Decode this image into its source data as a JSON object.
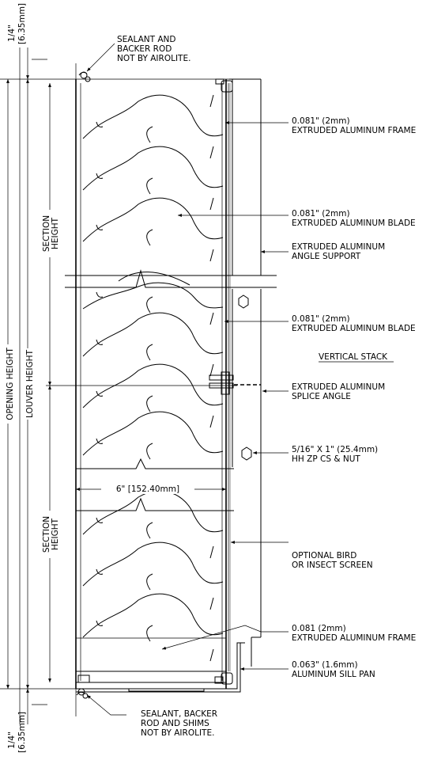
{
  "dimensions": {
    "top_gap": "1/4\"",
    "top_gap_mm": "[6.35mm]",
    "bottom_gap": "1/4\"",
    "bottom_gap_mm": "[6.35mm]",
    "opening_height": "OPENING HEIGHT",
    "louver_height": "LOUVER HEIGHT",
    "section_height_top": [
      "SECTION",
      "HEIGHT"
    ],
    "section_height_bottom": [
      "SECTION",
      "HEIGHT"
    ],
    "depth": "6\" [152.40mm]"
  },
  "callouts": {
    "sealant_top": [
      "SEALANT AND",
      "BACKER ROD",
      "NOT BY AIROLITE."
    ],
    "frame_top": [
      "0.081\" (2mm)",
      "EXTRUDED ALUMINUM FRAME"
    ],
    "blade_top": [
      "0.081\" (2mm)",
      "EXTRUDED ALUMINUM BLADE"
    ],
    "angle_support": [
      "EXTRUDED ALUMINUM",
      "ANGLE SUPPORT"
    ],
    "blade_middle": [
      "0.081\" (2mm)",
      "EXTRUDED ALUMINUM BLADE"
    ],
    "vertical_stack": "VERTICAL STACK",
    "splice_angle": [
      "EXTRUDED ALUMINUM",
      "SPLICE ANGLE"
    ],
    "bolt": [
      "5/16\" X 1\" (25.4mm)",
      "HH ZP CS & NUT"
    ],
    "screen": [
      "OPTIONAL BIRD",
      "OR INSECT SCREEN"
    ],
    "frame_bottom": [
      "0.081 (2mm)",
      "EXTRUDED ALUMINUM FRAME"
    ],
    "sill_pan": [
      "0.063\" (1.6mm)",
      "ALUMINUM SILL PAN"
    ],
    "sealant_bottom": [
      "SEALANT, BACKER",
      "ROD AND SHIMS",
      "NOT BY AIROLITE."
    ]
  }
}
